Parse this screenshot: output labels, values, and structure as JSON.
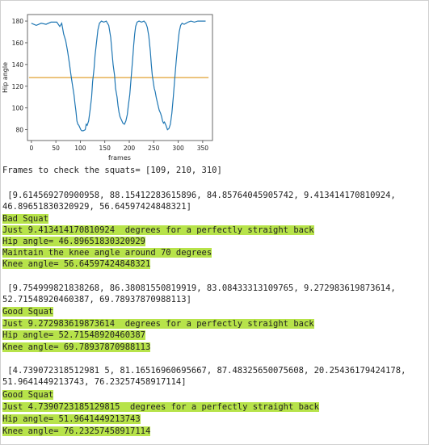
{
  "chart_data": {
    "type": "line",
    "xlabel": "frames",
    "ylabel": "Hip angle",
    "xlim": [
      -8,
      370
    ],
    "ylim": [
      70,
      186
    ],
    "xticks": [
      0,
      50,
      100,
      150,
      200,
      250,
      300,
      350
    ],
    "yticks": [
      80,
      100,
      120,
      140,
      160,
      180
    ],
    "threshold": 128,
    "line_color": "#1f77b4",
    "threshold_color": "#e0a030",
    "points": [
      [
        0,
        178
      ],
      [
        10,
        176
      ],
      [
        20,
        178
      ],
      [
        30,
        177
      ],
      [
        40,
        179
      ],
      [
        52,
        179
      ],
      [
        58,
        175
      ],
      [
        62,
        178
      ],
      [
        66,
        168
      ],
      [
        70,
        162
      ],
      [
        74,
        152
      ],
      [
        78,
        140
      ],
      [
        81,
        130
      ],
      [
        84,
        121
      ],
      [
        87,
        112
      ],
      [
        89,
        104
      ],
      [
        91,
        97
      ],
      [
        93,
        88
      ],
      [
        95,
        85
      ],
      [
        97,
        84
      ],
      [
        99,
        82
      ],
      [
        101,
        80
      ],
      [
        103,
        79
      ],
      [
        106,
        79
      ],
      [
        110,
        80
      ],
      [
        112,
        85
      ],
      [
        114,
        84
      ],
      [
        117,
        88
      ],
      [
        120,
        98
      ],
      [
        123,
        110
      ],
      [
        125,
        124
      ],
      [
        128,
        136
      ],
      [
        130,
        148
      ],
      [
        133,
        160
      ],
      [
        136,
        172
      ],
      [
        139,
        178
      ],
      [
        143,
        180
      ],
      [
        148,
        179
      ],
      [
        153,
        180
      ],
      [
        158,
        176
      ],
      [
        162,
        165
      ],
      [
        165,
        150
      ],
      [
        167,
        140
      ],
      [
        170,
        130
      ],
      [
        172,
        118
      ],
      [
        175,
        110
      ],
      [
        177,
        102
      ],
      [
        179,
        96
      ],
      [
        181,
        92
      ],
      [
        183,
        90
      ],
      [
        185,
        88
      ],
      [
        187,
        86
      ],
      [
        190,
        85
      ],
      [
        193,
        88
      ],
      [
        196,
        94
      ],
      [
        198,
        102
      ],
      [
        201,
        112
      ],
      [
        203,
        123
      ],
      [
        205,
        134
      ],
      [
        207,
        146
      ],
      [
        209,
        158
      ],
      [
        211,
        168
      ],
      [
        213,
        175
      ],
      [
        216,
        179
      ],
      [
        220,
        180
      ],
      [
        225,
        179
      ],
      [
        230,
        180
      ],
      [
        234,
        178
      ],
      [
        237,
        174
      ],
      [
        240,
        166
      ],
      [
        243,
        152
      ],
      [
        245,
        140
      ],
      [
        247,
        130
      ],
      [
        249,
        124
      ],
      [
        251,
        118
      ],
      [
        253,
        115
      ],
      [
        255,
        110
      ],
      [
        258,
        104
      ],
      [
        261,
        98
      ],
      [
        264,
        95
      ],
      [
        266,
        92
      ],
      [
        268,
        88
      ],
      [
        270,
        86
      ],
      [
        272,
        87
      ],
      [
        275,
        84
      ],
      [
        278,
        80
      ],
      [
        281,
        81
      ],
      [
        284,
        85
      ],
      [
        287,
        95
      ],
      [
        290,
        110
      ],
      [
        293,
        128
      ],
      [
        296,
        144
      ],
      [
        299,
        158
      ],
      [
        302,
        170
      ],
      [
        305,
        176
      ],
      [
        308,
        178
      ],
      [
        312,
        177
      ],
      [
        316,
        178
      ],
      [
        320,
        179
      ],
      [
        326,
        180
      ],
      [
        333,
        179
      ],
      [
        340,
        180
      ],
      [
        345,
        180
      ],
      [
        350,
        180
      ],
      [
        356,
        180
      ]
    ]
  },
  "console": {
    "squat_frames_line": "Frames to check the squats= [109, 210, 310]",
    "blocks": [
      {
        "list_line1": " [9.614569270900958, 88.15412283615896, 84.85764045905742, 9.413414170810924,",
        "list_line2": "46.89651830320929, 56.64597424848321]",
        "verdict": "Bad Squat",
        "back_msg": "Just 9.413414170810924  degrees for a perfectly straight back",
        "hip": "Hip angle= 46.89651830320929",
        "advice": "Maintain the knee angle around 70 degrees",
        "knee": "Knee angle= 56.64597424848321"
      },
      {
        "list_line1": " [9.754999821838268, 86.38081550819919, 83.08433313109765, 9.272983619873614,",
        "list_line2": "52.71548920460387, 69.78937870988113]",
        "verdict": "Good Squat",
        "back_msg": "Just 9.272983619873614  degrees for a perfectly straight back",
        "hip": "Hip angle= 52.71548920460387",
        "knee": "Knee angle= 69.78937870988113"
      },
      {
        "list_line1": " [4.739072318512981 5, 81.16516960695667, 87.48325650075608, 20.25436179424178,",
        "list_line2": "51.9641449213743, 76.23257458917114]",
        "verdict": "Good Squat",
        "back_msg": "Just 4.7390723185129815  degrees for a perfectly straight back",
        "hip": "Hip angle= 51.9641449213743",
        "knee": "Knee angle= 76.23257458917114"
      }
    ]
  }
}
